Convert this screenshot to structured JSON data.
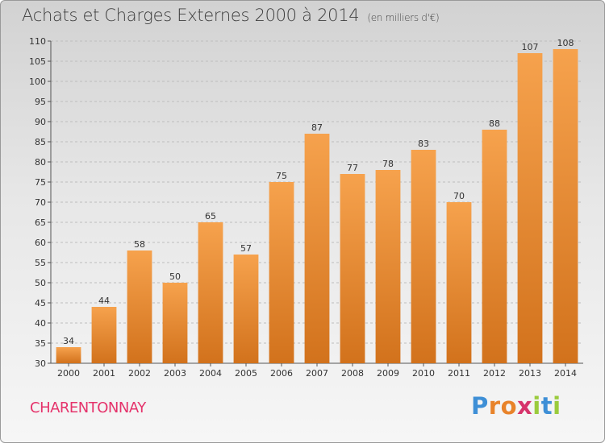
{
  "header": {
    "title": "Achats et Charges Externes 2000 à 2014",
    "unit": "(en milliers d'€)"
  },
  "footer": {
    "commune": "CHARENTONNAY",
    "brand_letters": [
      "P",
      "r",
      "o",
      "x",
      "i",
      "t",
      "i"
    ],
    "brand_colors": [
      "#3e8fd6",
      "#e8832a",
      "#e8832a",
      "#d6336b",
      "#9acb3c",
      "#3e8fd6",
      "#9acb3c"
    ]
  },
  "colors": {
    "bar_top": "#f6a24d",
    "bar_bottom": "#d2721c",
    "axis": "#555555",
    "gridline": "#bdbdbd",
    "commune": "#e5336b"
  },
  "chart_data": {
    "type": "bar",
    "title": "Achats et Charges Externes 2000 à 2014",
    "subtitle": "(en milliers d'€)",
    "categories": [
      "2000",
      "2001",
      "2002",
      "2003",
      "2004",
      "2005",
      "2006",
      "2007",
      "2008",
      "2009",
      "2010",
      "2011",
      "2012",
      "2013",
      "2014"
    ],
    "values": [
      34,
      44,
      58,
      50,
      65,
      57,
      75,
      87,
      77,
      78,
      83,
      70,
      88,
      107,
      108
    ],
    "ylim": [
      30,
      110
    ],
    "yticks": [
      30,
      35,
      40,
      45,
      50,
      55,
      60,
      65,
      70,
      75,
      80,
      85,
      90,
      95,
      100,
      105,
      110
    ],
    "xlabel": "",
    "ylabel": "",
    "grid": true,
    "data_labels": true
  }
}
